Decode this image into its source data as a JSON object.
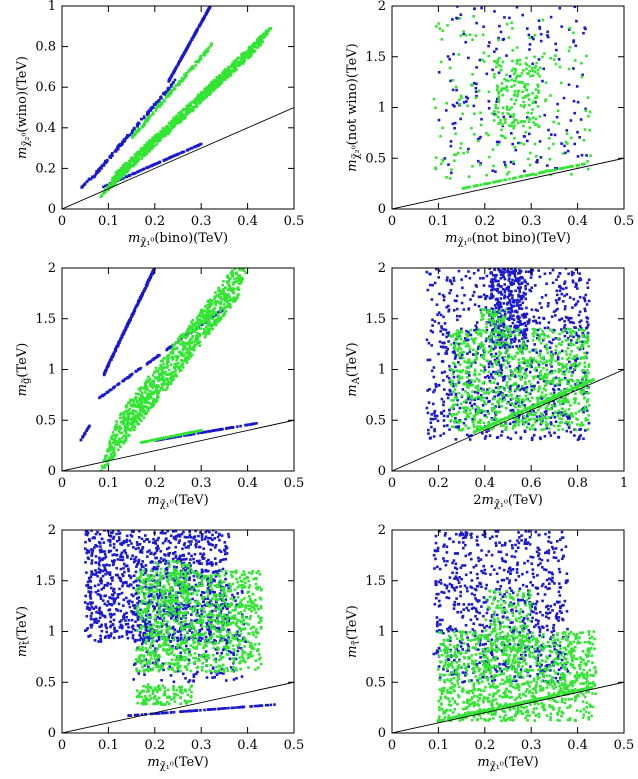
{
  "colors": {
    "series_blue": "#1a1acc",
    "series_green": "#33e533",
    "reference_line": "#000000"
  },
  "chart_data": [
    {
      "id": "p1",
      "type": "scatter",
      "xlabel": "m_χ̃₁⁰(bino)(TeV)",
      "ylabel": "m_χ̃₂⁰(wino)(TeV)",
      "xlim": [
        0,
        0.5
      ],
      "ylim": [
        0,
        1
      ],
      "xticks": [
        "0",
        "0.1",
        "0.2",
        "0.3",
        "0.4",
        "0.5"
      ],
      "yticks": [
        "0",
        "0.2",
        "0.4",
        "0.6",
        "0.8",
        "1"
      ],
      "reference_line": {
        "slope": 1,
        "x": [
          0,
          0.5
        ]
      },
      "series": [
        {
          "name": "blue",
          "clouds": [
            {
              "x": [
                0.23,
                0.32
              ],
              "y": [
                0.63,
                1.0
              ],
              "band": 0.02,
              "n": 220
            },
            {
              "x": [
                0.06,
                0.24
              ],
              "y": [
                0.14,
                0.62
              ],
              "band": 0.08,
              "n": 140
            },
            {
              "x": [
                0.09,
                0.3
              ],
              "y": [
                0.11,
                0.32
              ],
              "band": 0.02,
              "n": 120
            },
            {
              "x": [
                0.04,
                0.06
              ],
              "y": [
                0.1,
                0.15
              ],
              "band": 0.01,
              "n": 15
            }
          ]
        },
        {
          "name": "green",
          "clouds": [
            {
              "x": [
                0.1,
                0.44
              ],
              "y": [
                0.12,
                0.85
              ],
              "band": 0.18,
              "n": 900
            },
            {
              "x": [
                0.15,
                0.32
              ],
              "y": [
                0.35,
                0.8
              ],
              "band": 0.1,
              "n": 150
            }
          ]
        }
      ]
    },
    {
      "id": "p2",
      "type": "scatter",
      "xlabel": "m_χ̃₁⁰(not bino)(TeV)",
      "ylabel": "m_χ̃₂⁰(not wino)(TeV)",
      "xlim": [
        0,
        0.5
      ],
      "ylim": [
        0,
        2
      ],
      "xticks": [
        "0",
        "0.1",
        "0.2",
        "0.3",
        "0.4",
        "0.5"
      ],
      "yticks": [
        "0",
        "0.5",
        "1",
        "1.5",
        "2"
      ],
      "reference_line": {
        "slope": 1,
        "x": [
          0,
          0.5
        ]
      },
      "series": [
        {
          "name": "blue",
          "clouds": [
            {
              "x": [
                0.1,
                0.42
              ],
              "y": [
                0.35,
                2.0
              ],
              "band": 0,
              "n": 170
            }
          ]
        },
        {
          "name": "green",
          "clouds": [
            {
              "x": [
                0.22,
                0.32
              ],
              "y": [
                0.8,
                1.5
              ],
              "band": 0,
              "n": 160
            },
            {
              "x": [
                0.09,
                0.43
              ],
              "y": [
                0.3,
                1.9
              ],
              "band": 0,
              "n": 170
            },
            {
              "x": [
                0.15,
                0.42
              ],
              "y": [
                0.2,
                0.45
              ],
              "band": 0.03,
              "n": 90
            }
          ]
        }
      ]
    },
    {
      "id": "p3",
      "type": "scatter",
      "xlabel": "m_χ̃₁⁰(TeV)",
      "ylabel": "m_g̃(TeV)",
      "xlim": [
        0,
        0.5
      ],
      "ylim": [
        0,
        2
      ],
      "xticks": [
        "0",
        "0.1",
        "0.2",
        "0.3",
        "0.4",
        "0.5"
      ],
      "yticks": [
        "0",
        "0.5",
        "1",
        "1.5",
        "2"
      ],
      "reference_line": {
        "slope": 1,
        "x": [
          0,
          0.5
        ]
      },
      "series": [
        {
          "name": "blue",
          "clouds": [
            {
              "x": [
                0.09,
                0.2
              ],
              "y": [
                0.95,
                2.0
              ],
              "band": 0.05,
              "n": 260
            },
            {
              "x": [
                0.08,
                0.35
              ],
              "y": [
                0.72,
                1.6
              ],
              "band": 0.03,
              "n": 120
            },
            {
              "x": [
                0.2,
                0.42
              ],
              "y": [
                0.3,
                0.47
              ],
              "band": 0.02,
              "n": 100
            },
            {
              "x": [
                0.04,
                0.06
              ],
              "y": [
                0.3,
                0.45
              ],
              "band": 0.01,
              "n": 20
            }
          ]
        },
        {
          "name": "green",
          "clouds": [
            {
              "x": [
                0.1,
                0.4
              ],
              "y": [
                0.25,
                2.0
              ],
              "band": 0.35,
              "n": 1000
            },
            {
              "x": [
                0.17,
                0.3
              ],
              "y": [
                0.28,
                0.4
              ],
              "band": 0.03,
              "n": 100
            }
          ]
        }
      ]
    },
    {
      "id": "p4",
      "type": "scatter",
      "xlabel": "2m_χ̃₁⁰(TeV)",
      "ylabel": "m_A(TeV)",
      "xlim": [
        0,
        1
      ],
      "ylim": [
        0,
        2
      ],
      "xticks": [
        "0",
        "0.2",
        "0.4",
        "0.6",
        "0.8",
        "1"
      ],
      "yticks": [
        "0",
        "0.5",
        "1",
        "1.5",
        "2"
      ],
      "reference_line": {
        "slope": 1,
        "x": [
          0,
          1
        ]
      },
      "series": [
        {
          "name": "blue",
          "clouds": [
            {
              "x": [
                0.15,
                0.85
              ],
              "y": [
                0.3,
                2.0
              ],
              "band": 0,
              "n": 900
            },
            {
              "x": [
                0.42,
                0.58
              ],
              "y": [
                1.2,
                2.0
              ],
              "band": 0,
              "n": 300
            }
          ]
        },
        {
          "name": "green",
          "clouds": [
            {
              "x": [
                0.25,
                0.85
              ],
              "y": [
                0.4,
                1.4
              ],
              "band": 0,
              "n": 900
            },
            {
              "x": [
                0.35,
                0.87
              ],
              "y": [
                0.38,
                0.9
              ],
              "band": 0.05,
              "n": 250
            },
            {
              "x": [
                0.38,
                0.5
              ],
              "y": [
                1.3,
                1.6
              ],
              "band": 0,
              "n": 60
            }
          ]
        }
      ]
    },
    {
      "id": "p5",
      "type": "scatter",
      "xlabel": "m_χ̃₁⁰(TeV)",
      "ylabel": "m_t̃(TeV)",
      "xlim": [
        0,
        0.5
      ],
      "ylim": [
        0,
        2
      ],
      "xticks": [
        "0",
        "0.1",
        "0.2",
        "0.3",
        "0.4",
        "0.5"
      ],
      "yticks": [
        "0",
        "0.5",
        "1",
        "1.5",
        "2"
      ],
      "reference_line": {
        "slope": 1,
        "x": [
          0,
          0.5
        ]
      },
      "series": [
        {
          "name": "blue",
          "clouds": [
            {
              "x": [
                0.05,
                0.36
              ],
              "y": [
                0.9,
                2.0
              ],
              "band": 0,
              "n": 1100
            },
            {
              "x": [
                0.14,
                0.46
              ],
              "y": [
                0.17,
                0.28
              ],
              "band": 0.02,
              "n": 90
            },
            {
              "x": [
                0.15,
                0.4
              ],
              "y": [
                0.5,
                1.4
              ],
              "band": 0,
              "n": 250
            }
          ]
        },
        {
          "name": "green",
          "clouds": [
            {
              "x": [
                0.16,
                0.43
              ],
              "y": [
                0.6,
                1.6
              ],
              "band": 0,
              "n": 1000
            },
            {
              "x": [
                0.16,
                0.28
              ],
              "y": [
                0.28,
                0.48
              ],
              "band": 0,
              "n": 120
            },
            {
              "x": [
                0.2,
                0.28
              ],
              "y": [
                1.3,
                1.7
              ],
              "band": 0,
              "n": 80
            }
          ]
        }
      ]
    },
    {
      "id": "p6",
      "type": "scatter",
      "xlabel": "m_χ̃₁⁰(TeV)",
      "ylabel": "m_τ̃(TeV)",
      "xlim": [
        0,
        0.5
      ],
      "ylim": [
        0,
        2
      ],
      "xticks": [
        "0",
        "0.1",
        "0.2",
        "0.3",
        "0.4",
        "0.5"
      ],
      "yticks": [
        "0",
        "0.5",
        "1",
        "1.5",
        "2"
      ],
      "reference_line": {
        "slope": 1,
        "x": [
          0,
          0.5
        ]
      },
      "series": [
        {
          "name": "blue",
          "clouds": [
            {
              "x": [
                0.09,
                0.38
              ],
              "y": [
                0.5,
                2.0
              ],
              "band": 0,
              "n": 750
            }
          ]
        },
        {
          "name": "green",
          "clouds": [
            {
              "x": [
                0.1,
                0.44
              ],
              "y": [
                0.12,
                1.0
              ],
              "band": 0,
              "n": 1100
            },
            {
              "x": [
                0.2,
                0.3
              ],
              "y": [
                0.8,
                1.4
              ],
              "band": 0,
              "n": 150
            },
            {
              "x": [
                0.1,
                0.43
              ],
              "y": [
                0.12,
                0.45
              ],
              "band": 0.03,
              "n": 150
            }
          ]
        }
      ]
    }
  ]
}
